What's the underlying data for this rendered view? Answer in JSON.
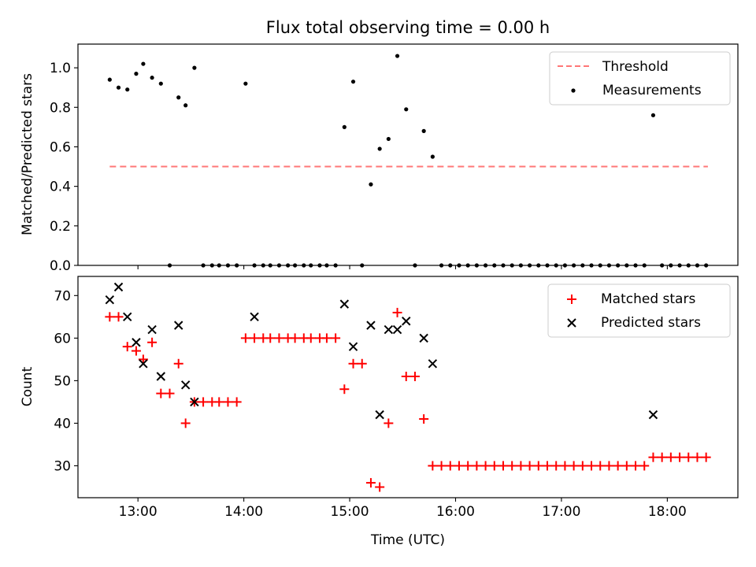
{
  "chart_data": [
    {
      "type": "scatter",
      "title": "Flux total observing time = 0.00 h",
      "ylabel": "Matched/Predicted stars",
      "xlabel": "",
      "xlim": [
        "12:26",
        "18:40"
      ],
      "ylim": [
        0,
        1.12
      ],
      "x_ticks": [
        "13:00",
        "14:00",
        "15:00",
        "16:00",
        "17:00",
        "18:00"
      ],
      "y_ticks": [
        "0.0",
        "0.2",
        "0.4",
        "0.6",
        "0.8",
        "1.0"
      ],
      "legend_position": "top-right",
      "grid": false,
      "series": [
        {
          "name": "Threshold",
          "type": "line",
          "style": "dashed",
          "color": "#ff7777",
          "x": [
            "12:44",
            "18:23"
          ],
          "y": [
            0.5,
            0.5
          ]
        },
        {
          "name": "Measurements",
          "type": "scatter",
          "marker": "dot",
          "color": "#000000",
          "x": [
            "12:44",
            "12:49",
            "12:54",
            "12:59",
            "13:03",
            "13:08",
            "13:13",
            "13:18",
            "13:23",
            "13:27",
            "13:32",
            "13:37",
            "13:42",
            "13:46",
            "13:51",
            "13:56",
            "14:01",
            "14:06",
            "14:11",
            "14:15",
            "14:20",
            "14:25",
            "14:29",
            "14:34",
            "14:38",
            "14:43",
            "14:47",
            "14:52",
            "14:57",
            "15:02",
            "15:07",
            "15:12",
            "15:17",
            "15:22",
            "15:27",
            "15:32",
            "15:37",
            "15:42",
            "15:47",
            "15:52",
            "15:57",
            "16:02",
            "16:07",
            "16:12",
            "16:17",
            "16:22",
            "16:27",
            "16:32",
            "16:37",
            "16:42",
            "16:47",
            "16:52",
            "16:57",
            "17:02",
            "17:07",
            "17:12",
            "17:17",
            "17:22",
            "17:27",
            "17:32",
            "17:37",
            "17:42",
            "17:47",
            "17:52",
            "17:57",
            "18:02",
            "18:07",
            "18:12",
            "18:17",
            "18:22"
          ],
          "y": [
            0.94,
            0.9,
            0.89,
            0.97,
            1.02,
            0.95,
            0.92,
            0.0,
            0.85,
            0.81,
            1.0,
            0.0,
            0.0,
            0.0,
            0.0,
            0.0,
            0.92,
            0.0,
            0.0,
            0.0,
            0.0,
            0.0,
            0.0,
            0.0,
            0.0,
            0.0,
            0.0,
            0.0,
            0.7,
            0.93,
            0.0,
            0.41,
            0.59,
            0.64,
            1.06,
            0.79,
            0.0,
            0.68,
            0.55,
            0.0,
            0.0,
            0.0,
            0.0,
            0.0,
            0.0,
            0.0,
            0.0,
            0.0,
            0.0,
            0.0,
            0.0,
            0.0,
            0.0,
            0.0,
            0.0,
            0.0,
            0.0,
            0.0,
            0.0,
            0.0,
            0.0,
            0.0,
            0.0,
            0.76,
            0.0,
            0.0,
            0.0,
            0.0,
            0.0,
            0.0
          ]
        }
      ]
    },
    {
      "type": "scatter",
      "title": "",
      "ylabel": "Count",
      "xlabel": "Time (UTC)",
      "xlim": [
        "12:26",
        "18:40"
      ],
      "ylim": [
        22.5,
        74.5
      ],
      "x_ticks": [
        "13:00",
        "14:00",
        "15:00",
        "16:00",
        "17:00",
        "18:00"
      ],
      "y_ticks": [
        "30",
        "40",
        "50",
        "60",
        "70"
      ],
      "legend_position": "top-right",
      "grid": false,
      "series": [
        {
          "name": "Matched stars",
          "type": "scatter",
          "marker": "plus",
          "color": "#ff0000",
          "x": [
            "12:44",
            "12:49",
            "12:54",
            "12:59",
            "13:03",
            "13:08",
            "13:13",
            "13:18",
            "13:23",
            "13:27",
            "13:32",
            "13:37",
            "13:42",
            "13:46",
            "13:51",
            "13:56",
            "14:01",
            "14:06",
            "14:11",
            "14:15",
            "14:20",
            "14:25",
            "14:29",
            "14:34",
            "14:38",
            "14:43",
            "14:47",
            "14:52",
            "14:57",
            "15:02",
            "15:07",
            "15:12",
            "15:17",
            "15:22",
            "15:27",
            "15:32",
            "15:37",
            "15:42",
            "15:47",
            "15:52",
            "15:57",
            "16:02",
            "16:07",
            "16:12",
            "16:17",
            "16:22",
            "16:27",
            "16:32",
            "16:37",
            "16:42",
            "16:47",
            "16:52",
            "16:57",
            "17:02",
            "17:07",
            "17:12",
            "17:17",
            "17:22",
            "17:27",
            "17:32",
            "17:37",
            "17:42",
            "17:47",
            "17:52",
            "17:57",
            "18:02",
            "18:07",
            "18:12",
            "18:17",
            "18:22"
          ],
          "y": [
            65,
            65,
            58,
            57,
            55,
            59,
            47,
            47,
            54,
            40,
            45,
            45,
            45,
            45,
            45,
            45,
            60,
            60,
            60,
            60,
            60,
            60,
            60,
            60,
            60,
            60,
            60,
            60,
            48,
            54,
            54,
            26,
            25,
            40,
            66,
            51,
            51,
            41,
            30,
            30,
            30,
            30,
            30,
            30,
            30,
            30,
            30,
            30,
            30,
            30,
            30,
            30,
            30,
            30,
            30,
            30,
            30,
            30,
            30,
            30,
            30,
            30,
            30,
            32,
            32,
            32,
            32,
            32,
            32,
            32
          ]
        },
        {
          "name": "Predicted stars",
          "type": "scatter",
          "marker": "x",
          "color": "#000000",
          "x": [
            "12:44",
            "12:49",
            "12:54",
            "12:59",
            "13:03",
            "13:08",
            "13:13",
            "13:23",
            "13:27",
            "13:32",
            "14:06",
            "14:57",
            "15:02",
            "15:12",
            "15:17",
            "15:22",
            "15:27",
            "15:32",
            "15:42",
            "15:47",
            "17:52"
          ],
          "y": [
            69,
            72,
            65,
            59,
            54,
            62,
            51,
            63,
            49,
            45,
            65,
            68,
            58,
            63,
            42,
            62,
            62,
            64,
            60,
            54,
            42
          ]
        }
      ]
    }
  ]
}
